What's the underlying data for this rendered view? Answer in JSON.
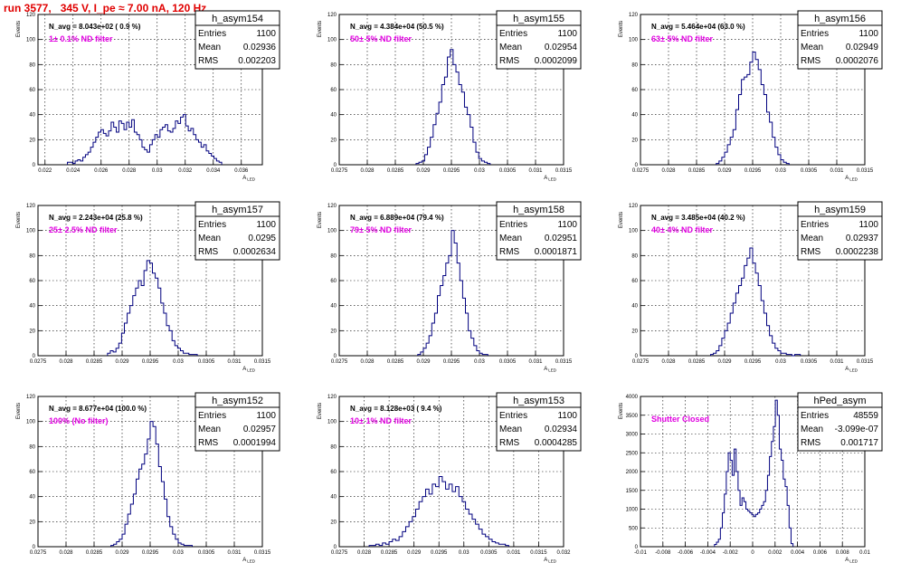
{
  "run_title": "run 3577,   345 V, I_pe ≈ 7.00 nA, 120 Hz",
  "colors": {
    "hist": "#00007f",
    "filter_label": "#e000e0",
    "title": "#e00000"
  },
  "stats_labels": [
    "Entries",
    "Mean",
    "RMS"
  ],
  "chart_data": [
    {
      "type": "bar",
      "hist_name": "h_asym154",
      "entries": "1100",
      "mean": "0.02936",
      "rms": "0.002203",
      "navg_label": "N_avg = 8.043e+02 ( 0.9 %)",
      "filter_label": "1± 0.1% ND filter",
      "xlabel": "A",
      "xlabel_sub": "LED",
      "ylabel": "Events",
      "grid": true,
      "xlim": [
        0.0215,
        0.0375
      ],
      "ylim": [
        0,
        120
      ],
      "xticks": [
        "0.022",
        "0.024",
        "0.026",
        "0.028",
        "0.03",
        "0.032",
        "0.034",
        "0.036"
      ],
      "xtick_values": [
        0.022,
        0.024,
        0.026,
        0.028,
        0.03,
        0.032,
        0.034,
        0.036
      ],
      "yticks": [
        0,
        20,
        40,
        60,
        80,
        100,
        120
      ],
      "bins": {
        "lo": 0.0236,
        "hi": 0.0346,
        "values": [
          2,
          2,
          1,
          3,
          4,
          3,
          6,
          8,
          10,
          14,
          18,
          22,
          26,
          28,
          25,
          23,
          27,
          34,
          30,
          26,
          35,
          33,
          28,
          34,
          30,
          36,
          26,
          24,
          20,
          14,
          12,
          10,
          16,
          20,
          24,
          22,
          28,
          30,
          32,
          27,
          26,
          29,
          35,
          33,
          38,
          40,
          31,
          27,
          29,
          24,
          20,
          18,
          14,
          16,
          11,
          9,
          7,
          5,
          3,
          2
        ]
      }
    },
    {
      "type": "bar",
      "hist_name": "h_asym155",
      "entries": "1100",
      "mean": "0.02954",
      "rms": "0.0002099",
      "navg_label": "N_avg = 4.384e+04 (50.5 %)",
      "filter_label": "50± 5% ND filter",
      "xlabel": "A",
      "xlabel_sub": "LED",
      "ylabel": "Events",
      "grid": true,
      "xlim": [
        0.0275,
        0.0315
      ],
      "ylim": [
        0,
        120
      ],
      "xticks": [
        "0.0275",
        "0.028",
        "0.0285",
        "0.029",
        "0.0295",
        "0.03",
        "0.0305",
        "0.031",
        "0.0315"
      ],
      "xtick_values": [
        0.0275,
        0.028,
        0.0285,
        0.029,
        0.0295,
        0.03,
        0.0305,
        0.031,
        0.0315
      ],
      "yticks": [
        0,
        20,
        40,
        60,
        80,
        100,
        120
      ],
      "bins": {
        "lo": 0.02887,
        "hi": 0.03019,
        "values": [
          1,
          2,
          3,
          8,
          14,
          22,
          32,
          41,
          50,
          64,
          70,
          86,
          92,
          80,
          74,
          64,
          58,
          46,
          40,
          30,
          18,
          10,
          5,
          3,
          2,
          1
        ]
      }
    },
    {
      "type": "bar",
      "hist_name": "h_asym156",
      "entries": "1100",
      "mean": "0.02949",
      "rms": "0.0002076",
      "navg_label": "N_avg = 5.464e+04 (63.0 %)",
      "filter_label": "63± 5% ND filter",
      "xlabel": "A",
      "xlabel_sub": "LED",
      "ylabel": "Events",
      "grid": true,
      "xlim": [
        0.0275,
        0.0315
      ],
      "ylim": [
        0,
        120
      ],
      "xticks": [
        "0.0275",
        "0.028",
        "0.0285",
        "0.029",
        "0.0295",
        "0.03",
        "0.0305",
        "0.031",
        "0.0315"
      ],
      "xtick_values": [
        0.0275,
        0.028,
        0.0285,
        0.029,
        0.0295,
        0.03,
        0.0305,
        0.031,
        0.0315
      ],
      "yticks": [
        0,
        20,
        40,
        60,
        80,
        100,
        120
      ],
      "bins": {
        "lo": 0.02885,
        "hi": 0.03015,
        "values": [
          1,
          3,
          6,
          10,
          16,
          22,
          28,
          44,
          56,
          68,
          70,
          72,
          82,
          90,
          84,
          76,
          64,
          56,
          42,
          34,
          22,
          14,
          8,
          4,
          2,
          1
        ]
      }
    },
    {
      "type": "bar",
      "hist_name": "h_asym157",
      "entries": "1100",
      "mean": "0.0295",
      "rms": "0.0002634",
      "navg_label": "N_avg = 2.243e+04 (25.8 %)",
      "filter_label": "25± 2.5% ND filter",
      "xlabel": "A",
      "xlabel_sub": "LED",
      "ylabel": "Events",
      "grid": true,
      "xlim": [
        0.0275,
        0.0315
      ],
      "ylim": [
        0,
        120
      ],
      "xticks": [
        "0.0275",
        "0.028",
        "0.0285",
        "0.029",
        "0.0295",
        "0.03",
        "0.0305",
        "0.031",
        "0.0315"
      ],
      "xtick_values": [
        0.0275,
        0.028,
        0.0285,
        0.029,
        0.0295,
        0.03,
        0.0305,
        0.031,
        0.0315
      ],
      "yticks": [
        0,
        20,
        40,
        60,
        80,
        100,
        120
      ],
      "bins": {
        "lo": 0.02874,
        "hi": 0.03034,
        "values": [
          2,
          4,
          3,
          6,
          10,
          18,
          26,
          34,
          40,
          48,
          54,
          60,
          56,
          68,
          76,
          74,
          66,
          62,
          54,
          42,
          34,
          24,
          20,
          12,
          8,
          6,
          4,
          2,
          2,
          1,
          1,
          1
        ]
      }
    },
    {
      "type": "bar",
      "hist_name": "h_asym158",
      "entries": "1100",
      "mean": "0.02951",
      "rms": "0.0001871",
      "navg_label": "N_avg = 6.889e+04 (79.4 %)",
      "filter_label": "79± 5% ND filter",
      "xlabel": "A",
      "xlabel_sub": "LED",
      "ylabel": "Events",
      "grid": true,
      "xlim": [
        0.0275,
        0.0315
      ],
      "ylim": [
        0,
        120
      ],
      "xticks": [
        "0.0275",
        "0.028",
        "0.0285",
        "0.029",
        "0.0295",
        "0.03",
        "0.0305",
        "0.031",
        "0.0315"
      ],
      "xtick_values": [
        0.0275,
        0.028,
        0.0285,
        0.029,
        0.0295,
        0.03,
        0.0305,
        0.031,
        0.0315
      ],
      "yticks": [
        0,
        20,
        40,
        60,
        80,
        100,
        120
      ],
      "bins": {
        "lo": 0.0289,
        "hi": 0.03015,
        "values": [
          1,
          3,
          6,
          10,
          16,
          26,
          34,
          48,
          56,
          64,
          74,
          80,
          100,
          90,
          74,
          60,
          46,
          34,
          20,
          14,
          8,
          4,
          2,
          1,
          1
        ]
      }
    },
    {
      "type": "bar",
      "hist_name": "h_asym159",
      "entries": "1100",
      "mean": "0.02937",
      "rms": "0.0002238",
      "navg_label": "N_avg = 3.485e+04 (40.2 %)",
      "filter_label": "40± 4% ND filter",
      "xlabel": "A",
      "xlabel_sub": "LED",
      "ylabel": "Events",
      "grid": true,
      "xlim": [
        0.0275,
        0.0315
      ],
      "ylim": [
        0,
        120
      ],
      "xticks": [
        "0.0275",
        "0.028",
        "0.0285",
        "0.029",
        "0.0295",
        "0.03",
        "0.0305",
        "0.031",
        "0.0315"
      ],
      "xtick_values": [
        0.0275,
        0.028,
        0.0285,
        0.029,
        0.0295,
        0.03,
        0.0305,
        0.031,
        0.0315
      ],
      "yticks": [
        0,
        20,
        40,
        60,
        80,
        100,
        120
      ],
      "bins": {
        "lo": 0.02875,
        "hi": 0.03035,
        "values": [
          1,
          2,
          4,
          8,
          14,
          20,
          26,
          34,
          42,
          50,
          56,
          62,
          72,
          78,
          86,
          74,
          66,
          56,
          44,
          34,
          24,
          16,
          10,
          6,
          4,
          2,
          2,
          1,
          1,
          0,
          1,
          1
        ]
      }
    },
    {
      "type": "bar",
      "hist_name": "h_asym152",
      "entries": "1100",
      "mean": "0.02957",
      "rms": "0.0001994",
      "navg_label": "N_avg = 8.677e+04 (100.0 %)",
      "filter_label": "100% (No filter)",
      "xlabel": "A",
      "xlabel_sub": "LED",
      "ylabel": "Events",
      "grid": true,
      "xlim": [
        0.0275,
        0.0315
      ],
      "ylim": [
        0,
        120
      ],
      "xticks": [
        "0.0275",
        "0.028",
        "0.0285",
        "0.029",
        "0.0295",
        "0.03",
        "0.0305",
        "0.031",
        "0.0315"
      ],
      "xtick_values": [
        0.0275,
        0.028,
        0.0285,
        0.029,
        0.0295,
        0.03,
        0.0305,
        0.031,
        0.0315
      ],
      "yticks": [
        0,
        20,
        40,
        60,
        80,
        100,
        120
      ],
      "bins": {
        "lo": 0.0288,
        "hi": 0.03025,
        "values": [
          1,
          2,
          4,
          6,
          10,
          18,
          26,
          34,
          42,
          54,
          62,
          66,
          74,
          86,
          100,
          96,
          82,
          64,
          52,
          38,
          24,
          16,
          10,
          6,
          3,
          2,
          1,
          1,
          1
        ]
      }
    },
    {
      "type": "bar",
      "hist_name": "h_asym153",
      "entries": "1100",
      "mean": "0.02934",
      "rms": "0.0004285",
      "navg_label": "N_avg = 8.128e+03 ( 9.4 %)",
      "filter_label": "10± 1% ND filter",
      "xlabel": "A",
      "xlabel_sub": "LED",
      "ylabel": "Events",
      "grid": true,
      "xlim": [
        0.0275,
        0.032
      ],
      "ylim": [
        0,
        120
      ],
      "xticks": [
        "0.0275",
        "0.028",
        "0.0285",
        "0.029",
        "0.0295",
        "0.03",
        "0.0305",
        "0.031",
        "0.0315",
        "0.032"
      ],
      "xtick_values": [
        0.0275,
        0.028,
        0.0285,
        0.029,
        0.0295,
        0.03,
        0.0305,
        0.031,
        0.0315,
        0.032
      ],
      "yticks": [
        0,
        20,
        40,
        60,
        80,
        100,
        120
      ],
      "bins": {
        "lo": 0.0281,
        "hi": 0.0309,
        "values": [
          1,
          1,
          2,
          1,
          3,
          2,
          4,
          6,
          5,
          8,
          12,
          16,
          20,
          24,
          30,
          36,
          40,
          46,
          42,
          50,
          48,
          56,
          52,
          46,
          50,
          44,
          48,
          40,
          36,
          30,
          26,
          22,
          18,
          14,
          10,
          8,
          6,
          4,
          3,
          2,
          2,
          1
        ]
      }
    },
    {
      "type": "bar",
      "hist_name": "hPed_asym",
      "entries": "48559",
      "mean": "-3.099e-07",
      "rms": "0.001717",
      "navg_label": "",
      "filter_label": "Shutter Closed",
      "xlabel": "A",
      "xlabel_sub": "LED",
      "ylabel": "Events",
      "grid": true,
      "xlim": [
        -0.01,
        0.01
      ],
      "ylim": [
        0,
        4000
      ],
      "xticks": [
        "-0.01",
        "-0.008",
        "-0.006",
        "-0.004",
        "-0.002",
        "0",
        "0.002",
        "0.004",
        "0.006",
        "0.008",
        "0.01"
      ],
      "xtick_values": [
        -0.01,
        -0.008,
        -0.006,
        -0.004,
        -0.002,
        0,
        0.002,
        0.004,
        0.006,
        0.008,
        0.01
      ],
      "yticks": [
        0,
        500,
        1000,
        1500,
        2000,
        2500,
        3000,
        3500,
        4000
      ],
      "bins": {
        "lo": -0.0034,
        "hi": 0.0036,
        "values": [
          60,
          120,
          200,
          500,
          900,
          1400,
          2000,
          2500,
          2300,
          1900,
          2600,
          2000,
          1500,
          1100,
          1300,
          1200,
          1000,
          950,
          900,
          850,
          800,
          860,
          900,
          1000,
          1100,
          1200,
          1500,
          1900,
          2400,
          2800,
          3200,
          3900,
          3500,
          2600,
          2300,
          1800,
          1600,
          1100,
          500,
          80
        ]
      }
    }
  ]
}
